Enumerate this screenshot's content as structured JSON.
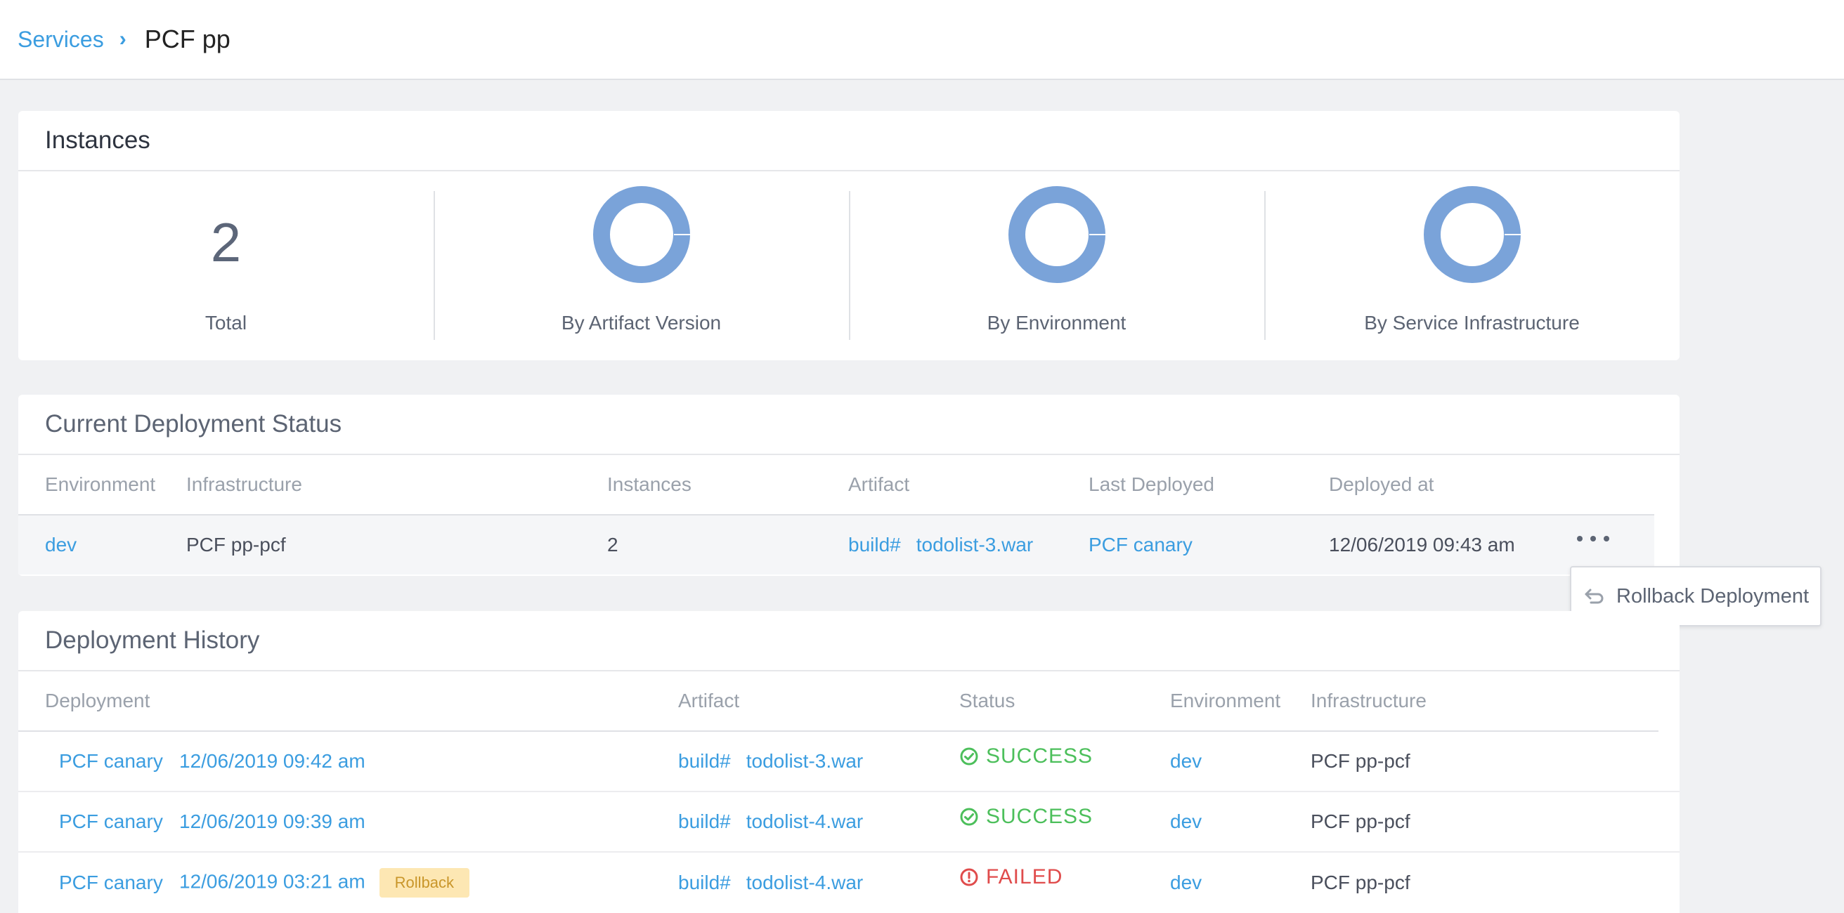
{
  "breadcrumb": {
    "parent": "Services",
    "current": "PCF pp"
  },
  "instances": {
    "title": "Instances",
    "total_value": "2",
    "total_label": "Total",
    "charts": [
      {
        "label": "By Artifact Version"
      },
      {
        "label": "By Environment"
      },
      {
        "label": "By Service Infrastructure"
      }
    ]
  },
  "current_status": {
    "title": "Current Deployment Status",
    "columns": [
      "Environment",
      "Infrastructure",
      "Instances",
      "Artifact",
      "Last Deployed",
      "Deployed at"
    ],
    "row": {
      "environment": "dev",
      "infrastructure": "PCF pp-pcf",
      "instances": "2",
      "artifact_build": "build#",
      "artifact_name": "todolist-3.war",
      "last_deployed": "PCF canary",
      "deployed_at": "12/06/2019 09:43 am"
    },
    "menu": {
      "rollback_label": "Rollback Deployment"
    }
  },
  "history": {
    "title": "Deployment History",
    "columns": [
      "Deployment",
      "Artifact",
      "Status",
      "Environment",
      "Infrastructure"
    ],
    "rows": [
      {
        "pipeline": "PCF canary",
        "time": "12/06/2019 09:42 am",
        "badge": "",
        "artifact_build": "build#",
        "artifact_name": "todolist-3.war",
        "status": "SUCCESS",
        "environment": "dev",
        "infrastructure": "PCF pp-pcf"
      },
      {
        "pipeline": "PCF canary",
        "time": "12/06/2019 09:39 am",
        "badge": "",
        "artifact_build": "build#",
        "artifact_name": "todolist-4.war",
        "status": "SUCCESS",
        "environment": "dev",
        "infrastructure": "PCF pp-pcf"
      },
      {
        "pipeline": "PCF canary",
        "time": "12/06/2019 03:21 am",
        "badge": "Rollback",
        "artifact_build": "build#",
        "artifact_name": "todolist-4.war",
        "status": "FAILED",
        "environment": "dev",
        "infrastructure": "PCF pp-pcf"
      }
    ]
  },
  "colors": {
    "link": "#3b9de0",
    "donut": "#7aa3d9",
    "success": "#4cbf5b",
    "failed": "#e04c4c",
    "badge_bg": "#fde7b3"
  }
}
